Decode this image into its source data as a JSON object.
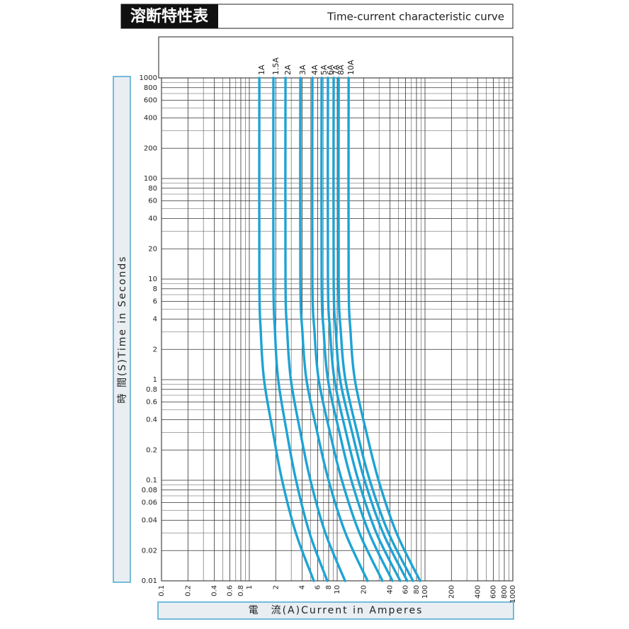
{
  "chart_data": {
    "type": "line",
    "title": "溶断特性表",
    "subtitle": "Time-current characteristic curve",
    "y_label": "時 間(S)Time in Seconds",
    "x_label": "電　流(A)Current in Amperes",
    "xlog": true,
    "ylog": true,
    "grid": true,
    "xlim": [
      0.1,
      1000
    ],
    "ylim": [
      0.01,
      1000
    ],
    "xticks": [
      0.1,
      0.2,
      0.4,
      0.6,
      0.8,
      1,
      2,
      4,
      6,
      8,
      10,
      20,
      40,
      60,
      80,
      100,
      200,
      400,
      600,
      800,
      1000
    ],
    "x_minor_ticks": [
      0.3,
      0.5,
      0.7,
      0.9,
      3,
      5,
      7,
      9,
      30,
      50,
      70,
      90,
      300,
      500,
      700,
      900
    ],
    "yticks": [
      0.01,
      0.02,
      0.04,
      0.06,
      0.08,
      0.1,
      0.2,
      0.4,
      0.6,
      0.8,
      1,
      2,
      4,
      6,
      8,
      10,
      20,
      40,
      60,
      80,
      100,
      200,
      400,
      600,
      800,
      1000
    ],
    "y_minor_ticks": [
      0.03,
      0.05,
      0.07,
      0.09,
      0.3,
      0.5,
      0.7,
      0.9,
      3,
      5,
      7,
      9,
      30,
      50,
      70,
      90,
      300,
      500,
      700,
      900
    ],
    "color": "#1ea3d4",
    "series": [
      {
        "name": "1A",
        "x": [
          1.3,
          1.3,
          1.35,
          1.47,
          1.86,
          2.36,
          3.38,
          5.42
        ],
        "values": [
          1000,
          10,
          3,
          1,
          0.3,
          0.1,
          0.03,
          0.01
        ]
      },
      {
        "name": "1.5A",
        "x": [
          1.88,
          1.88,
          1.96,
          2.13,
          2.67,
          3.4,
          4.84,
          7.71
        ],
        "values": [
          1000,
          10,
          3,
          1,
          0.3,
          0.1,
          0.03,
          0.01
        ]
      },
      {
        "name": "2A",
        "x": [
          2.58,
          2.58,
          2.7,
          2.97,
          3.81,
          4.96,
          7.33,
          12.3
        ],
        "values": [
          1000,
          10,
          3,
          1,
          0.3,
          0.1,
          0.03,
          0.01
        ]
      },
      {
        "name": "3A",
        "x": [
          3.81,
          3.81,
          4.02,
          4.47,
          5.93,
          7.98,
          12.4,
          22.2
        ],
        "values": [
          1000,
          10,
          3,
          1,
          0.3,
          0.1,
          0.03,
          0.01
        ]
      },
      {
        "name": "4A",
        "x": [
          5.22,
          5.22,
          5.52,
          6.16,
          8.27,
          11.3,
          17.9,
          32.8
        ],
        "values": [
          1000,
          10,
          3,
          1,
          0.3,
          0.1,
          0.03,
          0.01
        ]
      },
      {
        "name": "5A",
        "x": [
          6.65,
          6.65,
          7.03,
          7.85,
          10.6,
          14.5,
          23.1,
          42.6
        ],
        "values": [
          1000,
          10,
          3,
          1,
          0.3,
          0.1,
          0.03,
          0.01
        ]
      },
      {
        "name": "6A",
        "x": [
          7.85,
          7.85,
          8.32,
          9.31,
          12.6,
          17.4,
          27.9,
          52.2
        ],
        "values": [
          1000,
          10,
          3,
          1,
          0.3,
          0.1,
          0.03,
          0.01
        ]
      },
      {
        "name": "7A",
        "x": [
          9.12,
          9.12,
          9.66,
          10.8,
          14.8,
          20.5,
          33.3,
          62.8
        ],
        "values": [
          1000,
          10,
          3,
          1,
          0.3,
          0.1,
          0.03,
          0.01
        ]
      },
      {
        "name": "8A",
        "x": [
          10.4,
          10.4,
          11.0,
          12.4,
          16.9,
          23.5,
          38.4,
          72.9
        ],
        "values": [
          1000,
          10,
          3,
          1,
          0.3,
          0.1,
          0.03,
          0.01
        ]
      },
      {
        "name": "10A",
        "x": [
          13.5,
          13.5,
          14.2,
          15.9,
          21.5,
          29.6,
          47.3,
          87.9
        ],
        "values": [
          1000,
          10,
          3,
          1,
          0.3,
          0.1,
          0.03,
          0.01
        ]
      }
    ]
  }
}
